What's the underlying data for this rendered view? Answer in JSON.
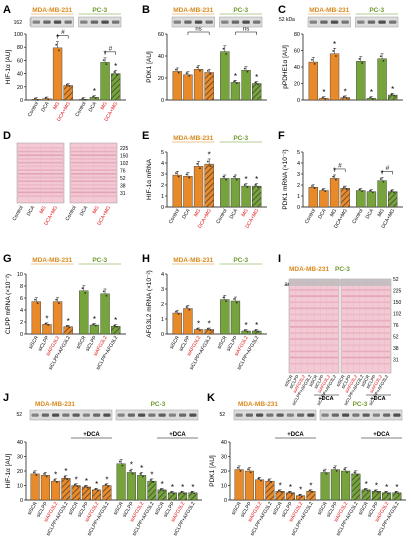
{
  "colors": {
    "orange": "#e8892a",
    "green": "#76a33c",
    "mda_title": "#d98a1e",
    "pc3_title": "#6f9a2e",
    "red_label": "#e01010",
    "stripe": "#2a2a2a",
    "blot_bg": "#f3c9d4",
    "blot_band": "#d98fa6",
    "wb_bg": "#dcdcdc",
    "wb_band": "#3a3a3a",
    "err": "#222222"
  },
  "figure": {
    "groups": [
      "MDA-MB-231",
      "PC-3"
    ],
    "chip_kda_A": "162",
    "chip_kda_C": "52 kDa",
    "chip_kda_JK": "52",
    "ladder_D": [
      "225",
      "150",
      "102",
      "76",
      "52",
      "38",
      "31"
    ],
    "ladder_I": [
      "52",
      "225",
      "150",
      "102",
      "76",
      "52",
      "38",
      "31"
    ],
    "actin_label": "actin",
    "plusdca": "+DCA",
    "sig": "#",
    "ns": "ns"
  },
  "chart_data": [
    {
      "id": "A",
      "type": "bar",
      "ylabel": "HIF-1α [AU]",
      "ylim": [
        0,
        100
      ],
      "yticks": [
        0,
        20,
        40,
        60,
        80,
        100
      ],
      "categories": [
        "Control",
        "DCA",
        "MG",
        "DCA+MG"
      ],
      "red_categories": [
        2,
        3
      ],
      "values_mda": [
        1,
        2,
        79,
        22
      ],
      "values_pc3": [
        1,
        4,
        57,
        40
      ],
      "stars_mda": [
        2
      ],
      "stars_pc3": [
        1,
        2,
        3
      ],
      "hash_mda": [
        2,
        3
      ],
      "hash_pc3": [
        2,
        3
      ]
    },
    {
      "id": "B",
      "type": "bar",
      "ylabel": "PDK1 [AU]",
      "ylim": [
        0,
        60
      ],
      "yticks": [
        0,
        20,
        40,
        60
      ],
      "values_mda": [
        26,
        23,
        28,
        25
      ],
      "values_pc3": [
        44,
        16,
        27,
        15
      ],
      "stars_pc3": [
        1,
        3
      ]
    },
    {
      "id": "C",
      "type": "bar",
      "ylabel": "pPDHE1α [AU]",
      "ylim": [
        0,
        80
      ],
      "yticks": [
        0,
        20,
        40,
        60,
        80
      ],
      "values_mda": [
        46,
        2,
        56,
        3
      ],
      "values_pc3": [
        47,
        2,
        50,
        6
      ],
      "stars_mda": [
        1,
        2,
        3
      ],
      "stars_pc3": [
        1,
        3
      ]
    },
    {
      "id": "E",
      "type": "bar",
      "ylabel": "HIF-1α mRNA",
      "ylim": [
        0,
        5
      ],
      "yticks": [
        0,
        1,
        2,
        3,
        4,
        5
      ],
      "categories": [
        "Control",
        "DCA",
        "MG",
        "DCA+MG"
      ],
      "red_categories": [
        2,
        3
      ],
      "values_mda": [
        2.9,
        2.8,
        3.7,
        3.9
      ],
      "values_pc3": [
        2.6,
        2.6,
        1.9,
        1.9
      ],
      "stars_mda": [
        3
      ],
      "stars_pc3": [
        2,
        3
      ]
    },
    {
      "id": "F",
      "type": "bar",
      "ylabel": "PDK1 mRNA (×10⁻²)",
      "ylim": [
        0,
        5
      ],
      "yticks": [
        0,
        1,
        2,
        3,
        4,
        5
      ],
      "categories": [
        "Control",
        "DCA",
        "MG",
        "DCA+MG"
      ],
      "values_mda": [
        1.8,
        1.5,
        2.6,
        1.7
      ],
      "values_pc3": [
        1.5,
        1.4,
        2.4,
        1.4
      ],
      "stars_mda": [
        2
      ],
      "stars_pc3": [
        2
      ],
      "hash_mda": [
        2,
        3
      ],
      "hash_pc3": [
        2,
        3
      ]
    },
    {
      "id": "G",
      "type": "bar",
      "ylabel": "CLPP mRNA (×10⁻²)",
      "ylim": [
        0,
        10
      ],
      "yticks": [
        0,
        2,
        4,
        6,
        8,
        10
      ],
      "categories": [
        "siSCR",
        "siCLPP",
        "siAFG3L2",
        "siCLPP+AFG3L2"
      ],
      "red_categories": [
        2
      ],
      "values_mda": [
        5.4,
        1.6,
        5.4,
        1.2
      ],
      "values_pc3": [
        7.2,
        1.5,
        6.7,
        1.3
      ],
      "stars_mda": [
        1,
        3
      ],
      "stars_pc3": [
        1,
        3
      ]
    },
    {
      "id": "H",
      "type": "bar",
      "ylabel": "AFG3L2 mRNA (×10⁻²)",
      "ylim": [
        0,
        4
      ],
      "yticks": [
        0,
        1,
        2,
        3,
        4
      ],
      "categories": [
        "siSCR",
        "siCLPP",
        "siAFG3L2",
        "siCLPP+AFG3L2"
      ],
      "red_categories": [
        2
      ],
      "values_mda": [
        1.4,
        1.7,
        0.3,
        0.3
      ],
      "values_pc3": [
        2.3,
        2.2,
        0.2,
        0.2
      ],
      "stars_mda": [
        2,
        3
      ],
      "stars_pc3": [
        2,
        3
      ]
    },
    {
      "id": "J",
      "type": "bar",
      "ylabel": "HIF-1α [AU]",
      "ylim": [
        0,
        40
      ],
      "yticks": [
        0,
        10,
        20,
        30,
        40
      ],
      "categories": [
        "siSCR",
        "siCLPP",
        "siAFG3L2",
        "siCLPP+AFG3L2",
        "siSCR",
        "siCLPP",
        "siAFG3L2",
        "siCLPP+AFG3L2"
      ],
      "red_categories": [
        2,
        6
      ],
      "values_mda": [
        18,
        17,
        13,
        15,
        10,
        9,
        7,
        10
      ],
      "values_pc3": [
        25,
        19,
        17,
        13,
        7,
        5,
        5,
        5
      ],
      "stars_mda": [
        2,
        3,
        4,
        5,
        6,
        7
      ],
      "stars_pc3": [
        1,
        2,
        3,
        4,
        5,
        6,
        7
      ]
    },
    {
      "id": "K",
      "type": "bar",
      "ylabel": "PDK1 [AU]",
      "ylim": [
        0,
        40
      ],
      "yticks": [
        0,
        10,
        20,
        30,
        40
      ],
      "categories": [
        "siSCR",
        "siCLPP",
        "siAFG3L2",
        "siCLPP+AFG3L2",
        "siSCR",
        "siCLPP",
        "siAFG3L2",
        "siCLPP+AFG3L2"
      ],
      "red_categories": [
        2,
        6
      ],
      "values_mda": [
        21,
        20,
        14,
        13,
        6,
        5,
        3,
        6
      ],
      "values_pc3": [
        19,
        21,
        20,
        18,
        7,
        6,
        5,
        5
      ],
      "stars_mda": [
        4,
        5,
        6,
        7
      ],
      "stars_pc3": [
        4,
        5,
        6,
        7
      ]
    }
  ]
}
